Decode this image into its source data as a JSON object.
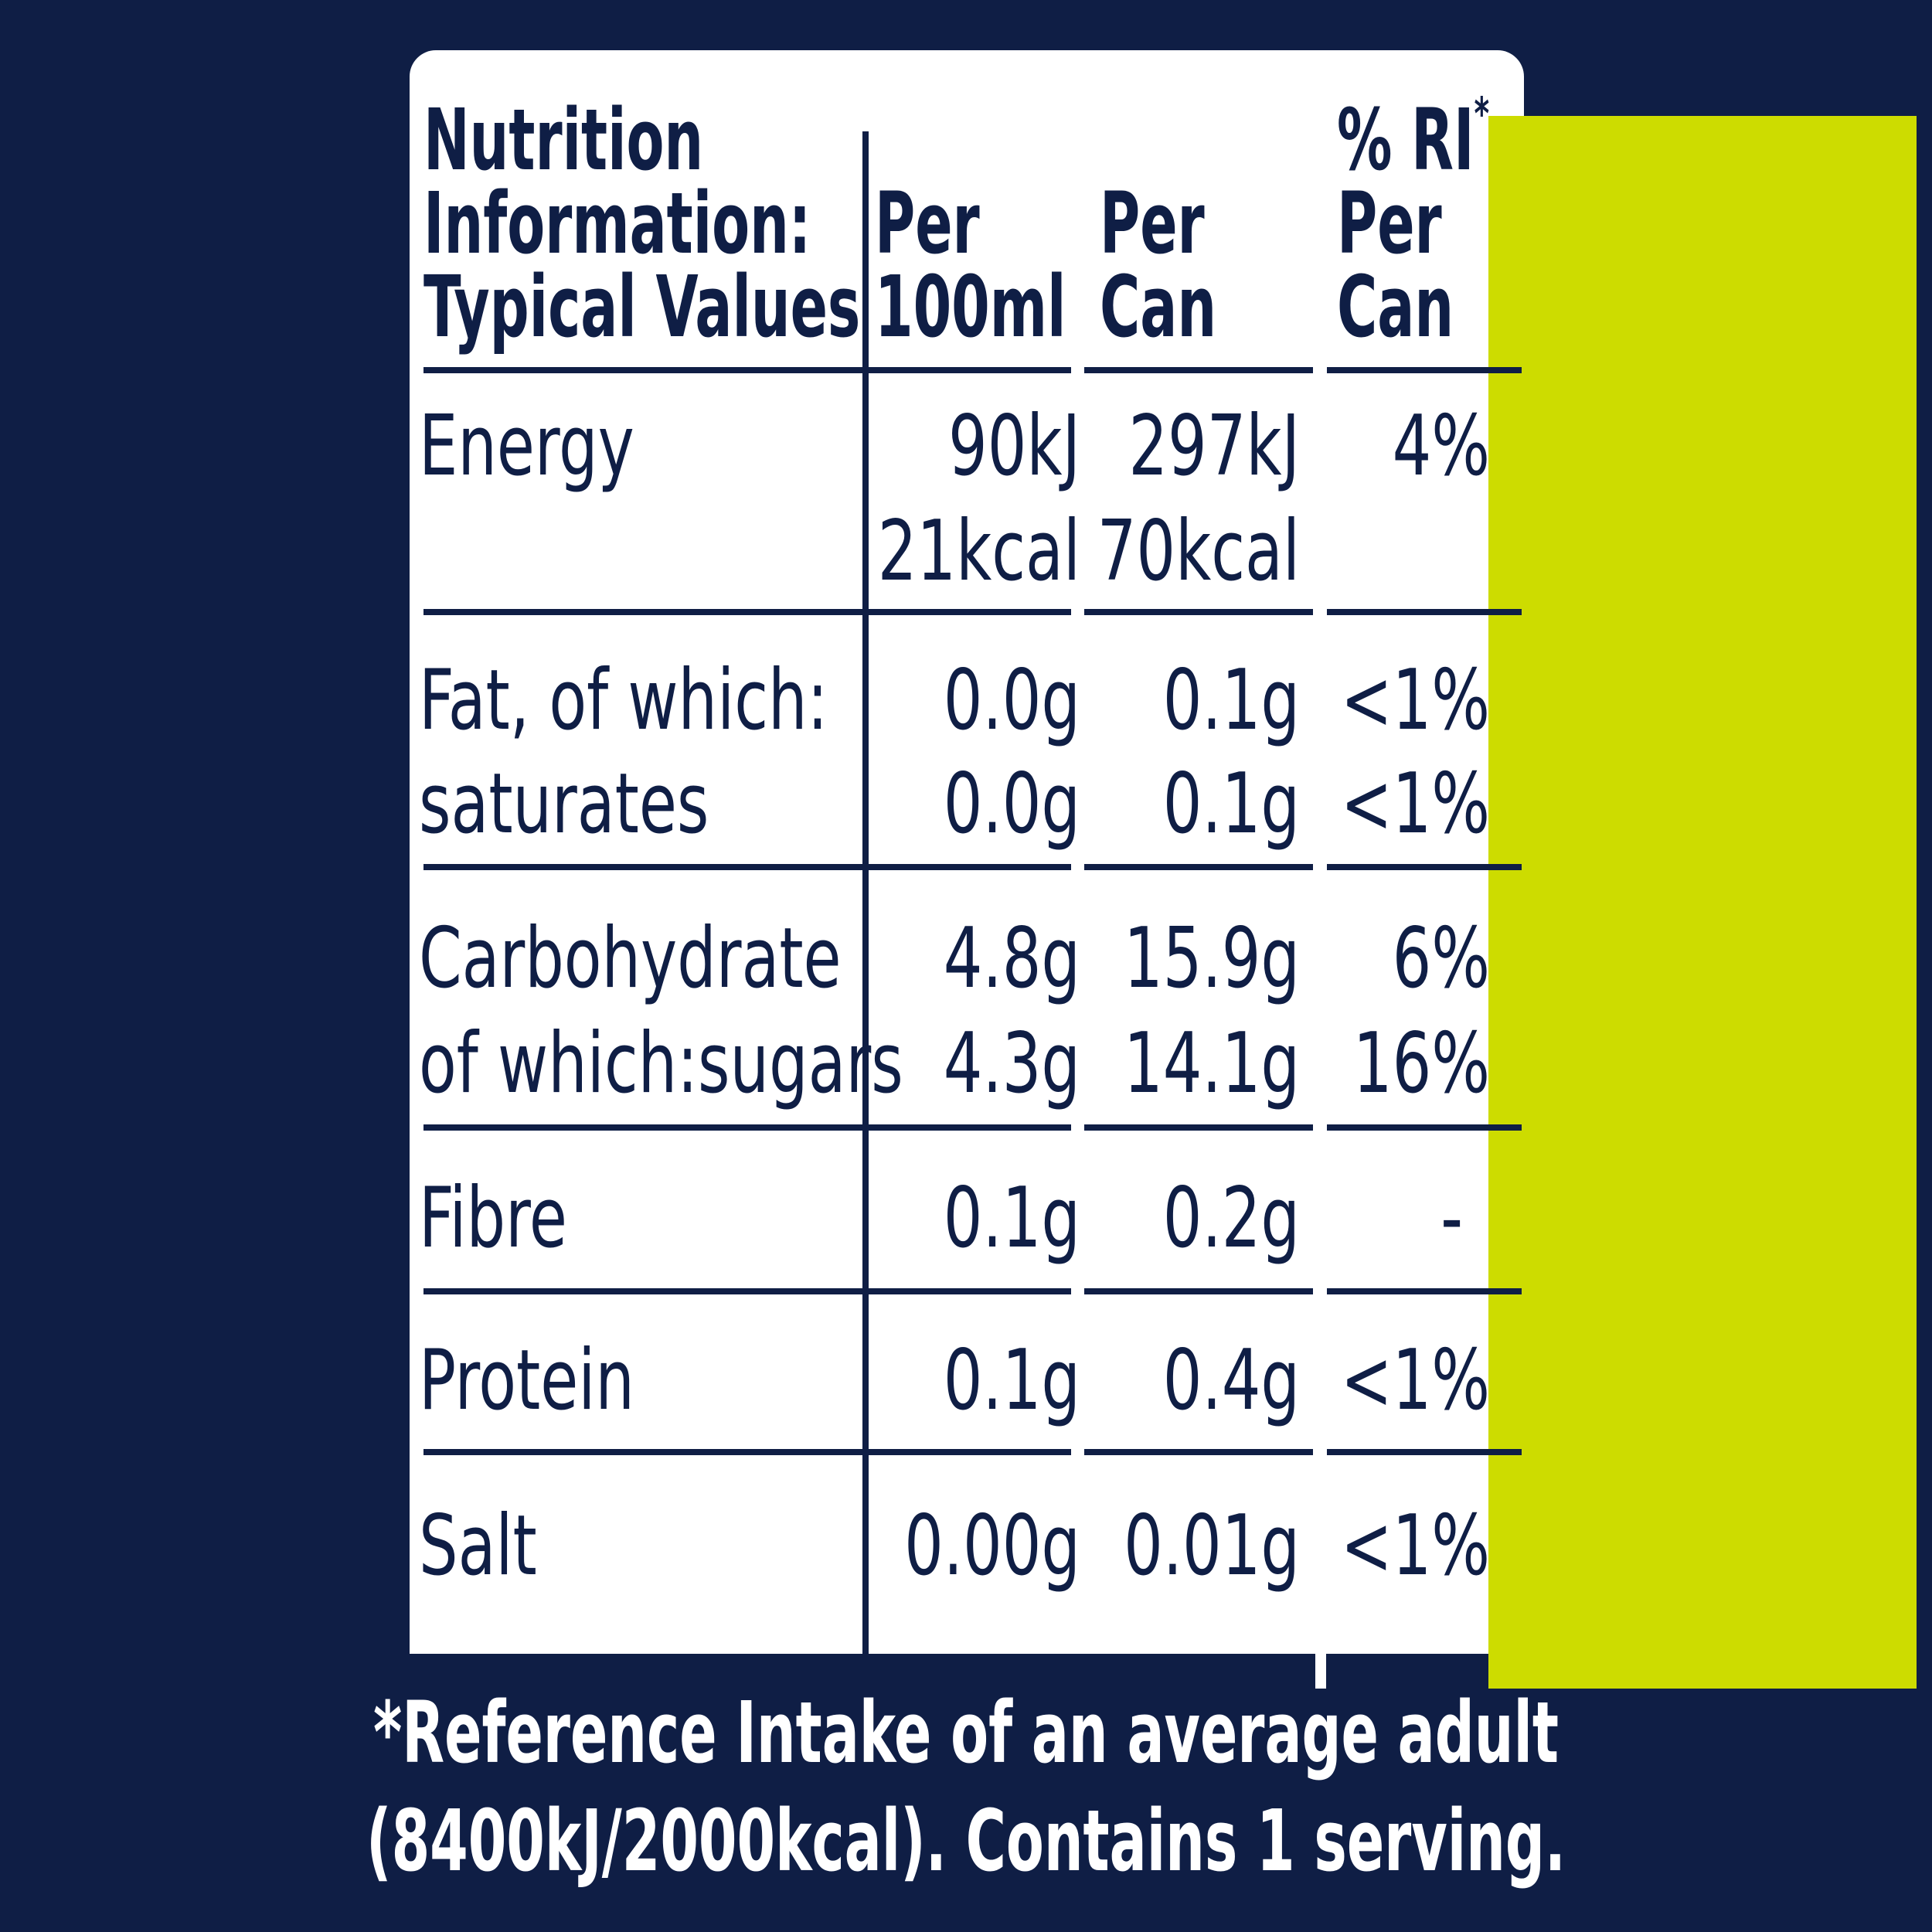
{
  "header": {
    "nutrient_col": [
      "Nutrition",
      "Information:",
      "Typical Values"
    ],
    "per100_col": [
      "Per",
      "100ml"
    ],
    "percan_col": [
      "Per",
      "Can"
    ],
    "ri_col": [
      "% RI",
      "*",
      "Per",
      "Can"
    ]
  },
  "rows": [
    {
      "labels": [
        "Energy"
      ],
      "per100": [
        "90kJ",
        "21kcal"
      ],
      "percan": [
        "297kJ",
        "70kcal"
      ],
      "ri": [
        "4%"
      ]
    },
    {
      "labels": [
        "Fat, of which:",
        "saturates"
      ],
      "per100": [
        "0.0g",
        "0.0g"
      ],
      "percan": [
        "0.1g",
        "0.1g"
      ],
      "ri": [
        "<1%",
        "<1%"
      ]
    },
    {
      "labels": [
        "Carbohydrate",
        "of which:sugars"
      ],
      "per100": [
        "4.8g",
        "4.3g"
      ],
      "percan": [
        "15.9g",
        "14.1g"
      ],
      "ri": [
        "6%",
        "16%"
      ]
    },
    {
      "labels": [
        "Fibre"
      ],
      "per100": [
        "0.1g"
      ],
      "percan": [
        "0.2g"
      ],
      "ri": [
        "-"
      ]
    },
    {
      "labels": [
        "Protein"
      ],
      "per100": [
        "0.1g"
      ],
      "percan": [
        "0.4g"
      ],
      "ri": [
        "<1%"
      ]
    },
    {
      "labels": [
        "Salt"
      ],
      "per100": [
        "0.00g"
      ],
      "percan": [
        "0.01g"
      ],
      "ri": [
        "<1%"
      ]
    }
  ],
  "footnote": [
    "*Reference Intake of an average adult",
    "(8400kJ/2000kcal). Contains 1 serving."
  ],
  "colors": {
    "background": "#0f1e45",
    "panel": "#ffffff",
    "highlight": "#cddc00",
    "text": "#0f1e45"
  }
}
